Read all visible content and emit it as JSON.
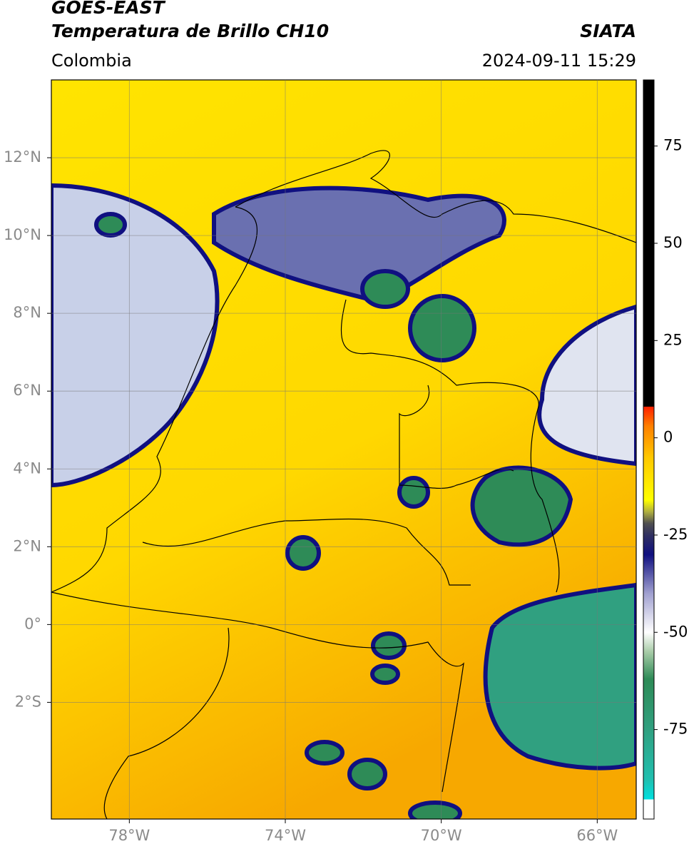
{
  "header": {
    "satellite": "GOES-EAST",
    "product": "Temperatura de Brillo CH10",
    "source": "SIATA",
    "region": "Colombia",
    "datetime": "2024-09-11 15:29"
  },
  "map": {
    "xlim": [
      -80,
      -65
    ],
    "ylim": [
      -5,
      14
    ],
    "grid": true,
    "xticks": [
      {
        "value": -78,
        "label": "78°W"
      },
      {
        "value": -74,
        "label": "74°W"
      },
      {
        "value": -70,
        "label": "70°W"
      },
      {
        "value": -66,
        "label": "66°W"
      }
    ],
    "yticks": [
      {
        "value": 12,
        "label": "12°N"
      },
      {
        "value": 10,
        "label": "10°N"
      },
      {
        "value": 8,
        "label": "8°N"
      },
      {
        "value": 6,
        "label": "6°N"
      },
      {
        "value": 4,
        "label": "4°N"
      },
      {
        "value": 2,
        "label": "2°N"
      },
      {
        "value": 0,
        "label": "0°"
      },
      {
        "value": -2,
        "label": "2°S"
      }
    ]
  },
  "colorbar": {
    "lim": [
      -98,
      92
    ],
    "ticks": [
      75,
      50,
      25,
      0,
      -25,
      -50,
      -75
    ],
    "stops": [
      {
        "value": -98,
        "color": "#ffffff"
      },
      {
        "value": -93,
        "color": "#ffffff"
      },
      {
        "value": -93,
        "color": "#00e0e0"
      },
      {
        "value": -88,
        "color": "#20c0b0"
      },
      {
        "value": -75,
        "color": "#30a080"
      },
      {
        "value": -62,
        "color": "#2e8b57"
      },
      {
        "value": -55,
        "color": "#a8cca8"
      },
      {
        "value": -50,
        "color": "#ffffff"
      },
      {
        "value": -40,
        "color": "#a0a0d0"
      },
      {
        "value": -30,
        "color": "#101080"
      },
      {
        "value": -25,
        "color": "#303060"
      },
      {
        "value": -22,
        "color": "#505050"
      },
      {
        "value": -19,
        "color": "#b0b040"
      },
      {
        "value": -16,
        "color": "#ffff00"
      },
      {
        "value": -5,
        "color": "#ffc800"
      },
      {
        "value": 3,
        "color": "#ff8000"
      },
      {
        "value": 8,
        "color": "#ff2000"
      },
      {
        "value": 8,
        "color": "#000000"
      },
      {
        "value": 92,
        "color": "#000000"
      }
    ]
  }
}
